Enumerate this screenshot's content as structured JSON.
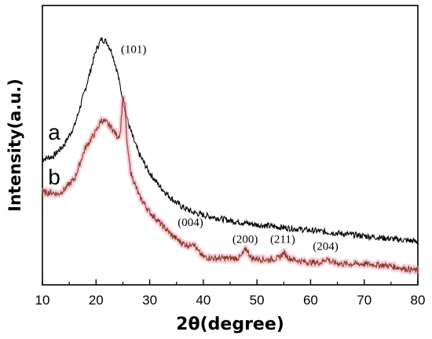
{
  "chart_data": {
    "type": "line",
    "xlabel": "2θ(degree)",
    "ylabel": "Intensity(a.u.)",
    "xlim": [
      10,
      80
    ],
    "x_ticks": [
      10,
      20,
      30,
      40,
      50,
      60,
      70,
      80
    ],
    "y_ticks_labeled": false,
    "grid": false,
    "y_range_relative": [
      0,
      100
    ],
    "series": [
      {
        "name": "a",
        "color": "#000000",
        "points": [
          [
            10,
            45
          ],
          [
            12,
            46
          ],
          [
            14,
            50
          ],
          [
            16,
            57
          ],
          [
            18,
            70
          ],
          [
            20,
            84
          ],
          [
            21,
            88
          ],
          [
            22,
            87
          ],
          [
            23,
            83
          ],
          [
            24,
            76
          ],
          [
            25,
            66
          ],
          [
            26,
            58
          ],
          [
            27,
            52
          ],
          [
            28,
            47
          ],
          [
            30,
            40
          ],
          [
            32,
            35
          ],
          [
            34,
            31
          ],
          [
            36,
            28
          ],
          [
            38,
            26
          ],
          [
            40,
            25
          ],
          [
            45,
            23
          ],
          [
            50,
            21.5
          ],
          [
            55,
            20.5
          ],
          [
            60,
            19.5
          ],
          [
            65,
            18.5
          ],
          [
            70,
            17.5
          ],
          [
            75,
            16.5
          ],
          [
            80,
            15.5
          ]
        ]
      },
      {
        "name": "b",
        "color": "#8B3A2A",
        "points": [
          [
            10,
            33
          ],
          [
            12,
            33
          ],
          [
            13,
            32.5
          ],
          [
            14,
            34
          ],
          [
            16,
            38
          ],
          [
            18,
            49
          ],
          [
            20,
            55
          ],
          [
            21,
            59
          ],
          [
            22,
            58
          ],
          [
            23,
            56
          ],
          [
            24,
            53
          ],
          [
            24.5,
            54
          ],
          [
            25,
            67
          ],
          [
            25.4,
            64
          ],
          [
            25.8,
            50
          ],
          [
            26.5,
            40
          ],
          [
            28,
            32
          ],
          [
            30,
            26
          ],
          [
            32,
            22
          ],
          [
            34,
            18
          ],
          [
            36,
            15
          ],
          [
            37.5,
            14
          ],
          [
            38,
            15.5
          ],
          [
            39,
            12
          ],
          [
            40,
            10
          ],
          [
            42,
            9.5
          ],
          [
            44,
            9.5
          ],
          [
            46,
            9.5
          ],
          [
            47,
            10
          ],
          [
            48,
            13
          ],
          [
            49,
            9.5
          ],
          [
            52,
            9
          ],
          [
            54,
            9.5
          ],
          [
            55,
            11.5
          ],
          [
            56,
            9.5
          ],
          [
            58,
            8.5
          ],
          [
            60,
            8
          ],
          [
            62,
            8
          ],
          [
            63,
            9.5
          ],
          [
            64,
            8
          ],
          [
            66,
            7.5
          ],
          [
            70,
            7.5
          ],
          [
            74,
            7
          ],
          [
            77,
            6
          ],
          [
            80,
            5
          ]
        ]
      }
    ],
    "curve_labels": [
      {
        "text": "a",
        "x": 12.2,
        "y": 52
      },
      {
        "text": "b",
        "x": 12.2,
        "y": 36
      }
    ],
    "annotations": [
      {
        "text": "(101)",
        "x": 27,
        "y": 83
      },
      {
        "text": "(004)",
        "x": 37.6,
        "y": 21
      },
      {
        "text": "(200)",
        "x": 47.8,
        "y": 15
      },
      {
        "text": "(211)",
        "x": 54.8,
        "y": 15
      },
      {
        "text": "(204)",
        "x": 62.8,
        "y": 12.5
      }
    ]
  }
}
